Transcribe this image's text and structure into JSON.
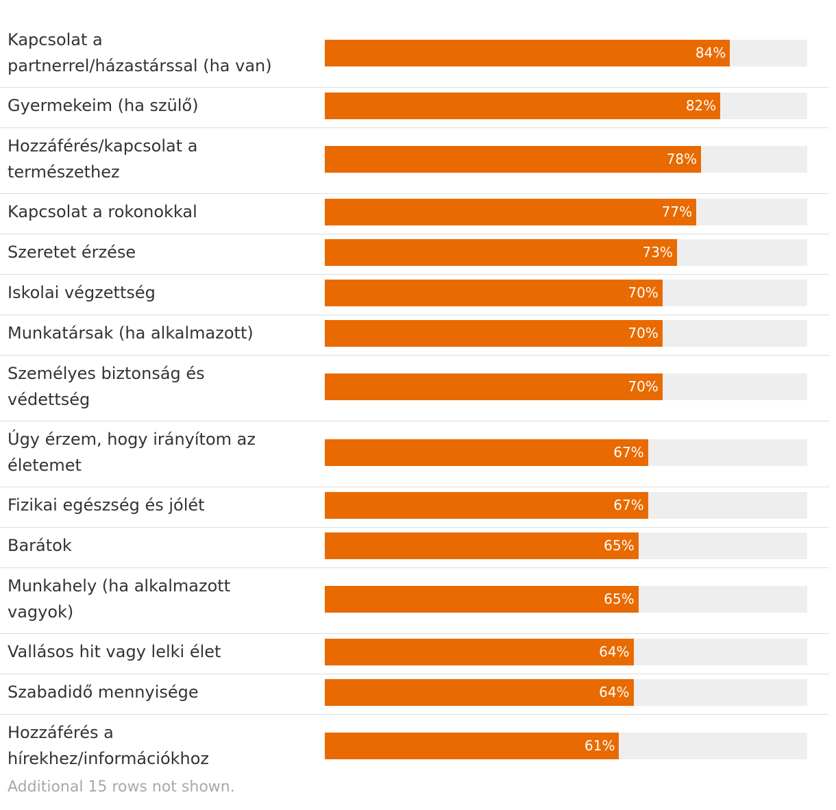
{
  "chart_data": {
    "type": "bar",
    "orientation": "horizontal",
    "title": "",
    "xlabel": "",
    "ylabel": "",
    "xlim": [
      0,
      100
    ],
    "unit": "%",
    "bar_color": "#e86a00",
    "track_color": "#eeeeee",
    "categories": [
      "Kapcsolat a partnerrel/házastárssal (ha van)",
      "Gyermekeim (ha szülő)",
      "Hozzáférés/kapcsolat a természethez",
      "Kapcsolat a rokonokkal",
      "Szeretet érzése",
      "Iskolai végzettség",
      "Munkatársak (ha alkalmazott)",
      "Személyes biztonság és védettség",
      "Úgy érzem, hogy irányítom az életemet",
      "Fizikai egészség és jólét",
      "Barátok",
      "Munkahely (ha alkalmazott vagyok)",
      "Vallásos hit vagy lelki élet",
      "Szabadidő mennyisége",
      "Hozzáférés a hírekhez/információkhoz"
    ],
    "values": [
      84,
      82,
      78,
      77,
      73,
      70,
      70,
      70,
      67,
      67,
      65,
      65,
      64,
      64,
      61
    ],
    "value_labels": [
      "84%",
      "82%",
      "78%",
      "77%",
      "73%",
      "70%",
      "70%",
      "70%",
      "67%",
      "67%",
      "65%",
      "65%",
      "64%",
      "64%",
      "61%"
    ]
  },
  "footnote": "Additional 15 rows not shown."
}
